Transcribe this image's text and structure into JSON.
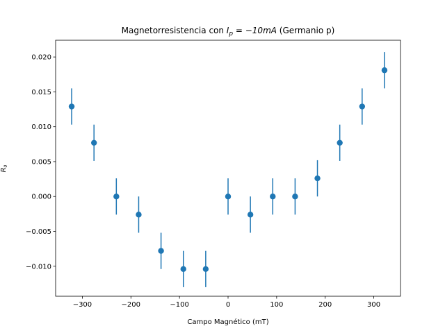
{
  "chart_data": {
    "type": "scatter",
    "title_text": "Magnetorresistencia con ",
    "title_math_var": "I",
    "title_math_sub": "p",
    "title_math_rest": " = −10mA",
    "title_suffix": " (Germanio p)",
    "xlabel": "Campo Magnético (mT)",
    "ylabel_var": "R",
    "ylabel_sub": "0",
    "xlim": [
      -355,
      355
    ],
    "ylim": [
      -0.0143,
      0.0224
    ],
    "xticks": [
      -300,
      -200,
      -100,
      0,
      100,
      200,
      300
    ],
    "yticks": [
      -0.01,
      -0.005,
      0.0,
      0.005,
      0.01,
      0.015,
      0.02
    ],
    "xtick_labels": [
      "−300",
      "−200",
      "−100",
      "0",
      "100",
      "200",
      "300"
    ],
    "ytick_labels": [
      "−0.010",
      "−0.005",
      "0.000",
      "0.005",
      "0.010",
      "0.015",
      "0.020"
    ],
    "marker_color": "#1f77b4",
    "points": [
      {
        "x": -322,
        "y": 0.0129,
        "err": 0.0026
      },
      {
        "x": -276,
        "y": 0.0077,
        "err": 0.0026
      },
      {
        "x": -230,
        "y": 0.0,
        "err": 0.0026
      },
      {
        "x": -184,
        "y": -0.0026,
        "err": 0.0026
      },
      {
        "x": -138,
        "y": -0.0078,
        "err": 0.0026
      },
      {
        "x": -92,
        "y": -0.0104,
        "err": 0.0026
      },
      {
        "x": -46,
        "y": -0.0104,
        "err": 0.0026
      },
      {
        "x": 0,
        "y": 0.0,
        "err": 0.0026
      },
      {
        "x": 46,
        "y": -0.0026,
        "err": 0.0026
      },
      {
        "x": 92,
        "y": 0.0,
        "err": 0.0026
      },
      {
        "x": 138,
        "y": 0.0,
        "err": 0.0026
      },
      {
        "x": 184,
        "y": 0.0026,
        "err": 0.0026
      },
      {
        "x": 230,
        "y": 0.0077,
        "err": 0.0026
      },
      {
        "x": 276,
        "y": 0.0129,
        "err": 0.0026
      },
      {
        "x": 322,
        "y": 0.0181,
        "err": 0.0026
      }
    ]
  }
}
